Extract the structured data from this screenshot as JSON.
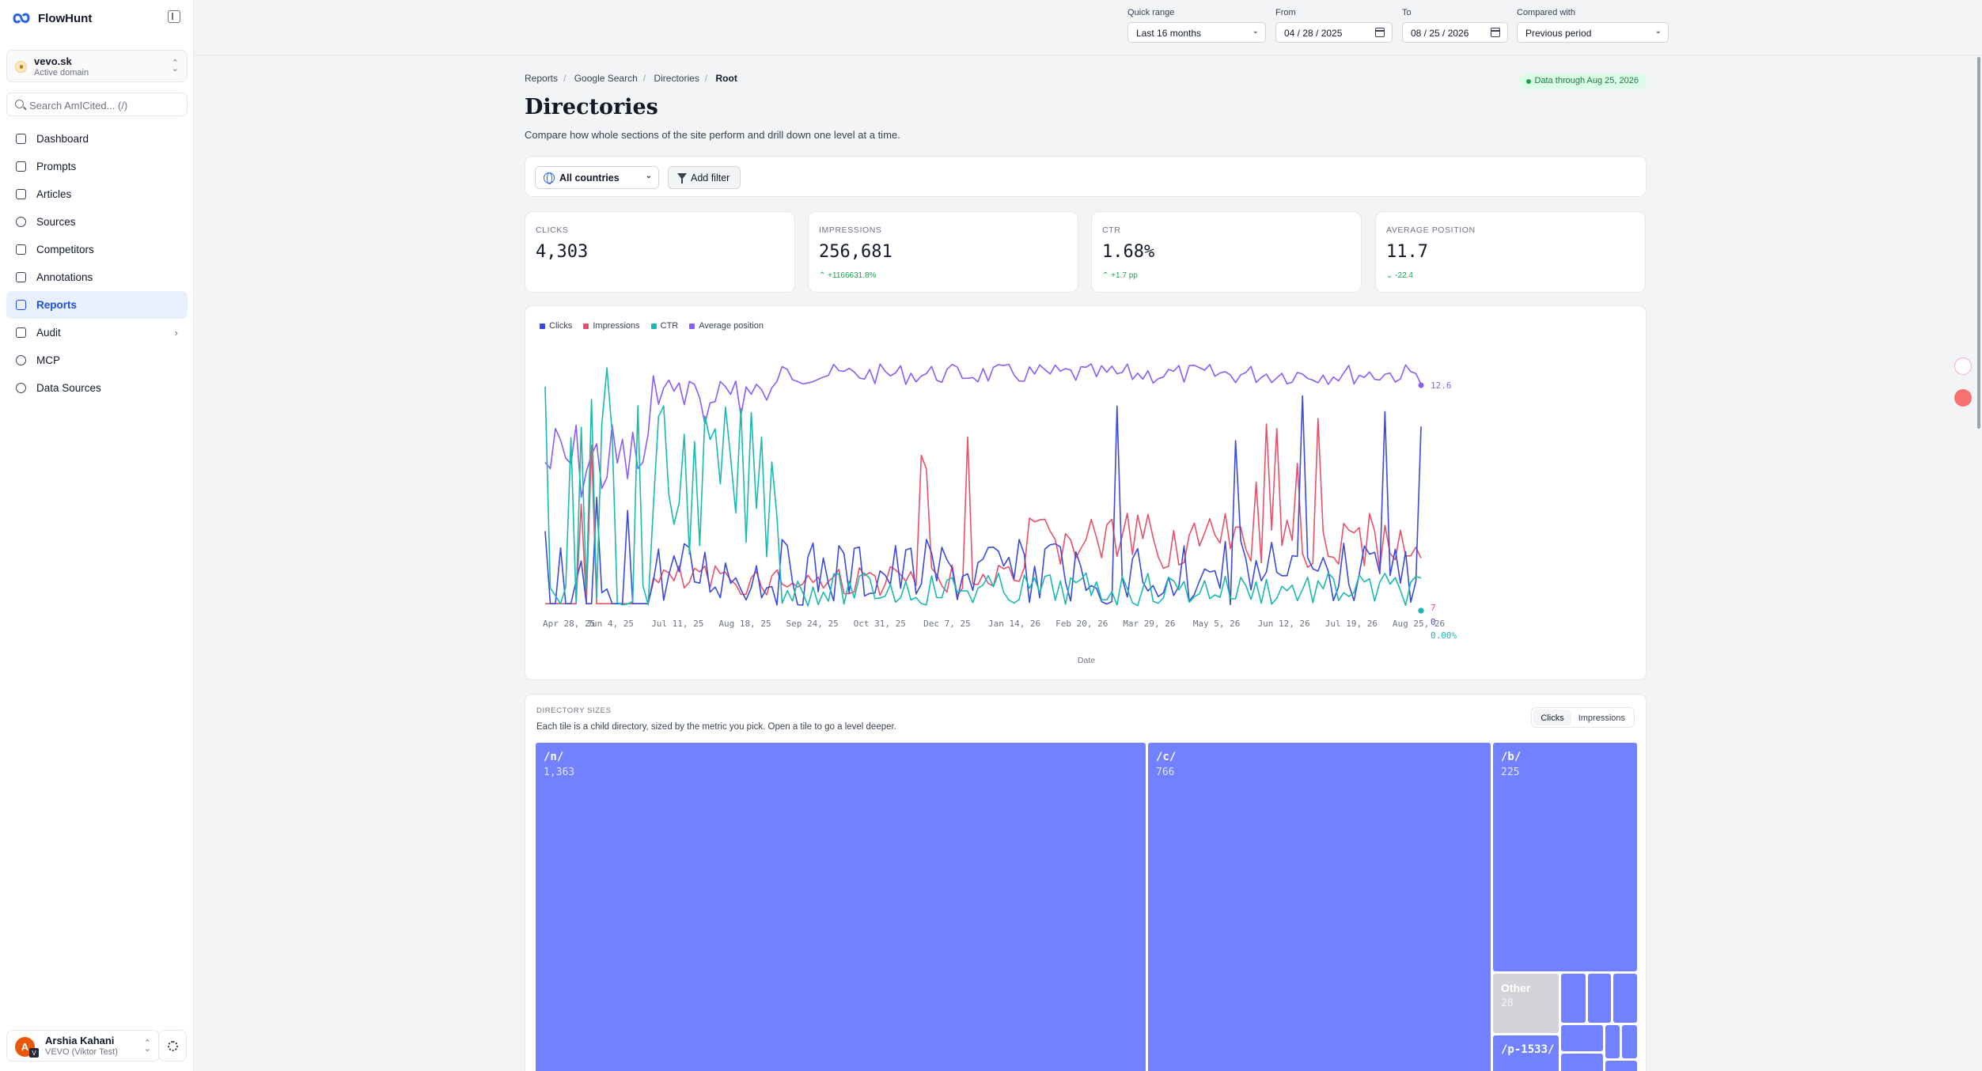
{
  "sidebar": {
    "brand": "FlowHunt",
    "domain": {
      "name": "vevo.sk",
      "sub": "Active domain"
    },
    "search_placeholder": "Search AmICited... (/)",
    "items": [
      {
        "label": "Dashboard",
        "icon": "dashboard-icon"
      },
      {
        "label": "Prompts",
        "icon": "prompts-icon"
      },
      {
        "label": "Articles",
        "icon": "articles-icon"
      },
      {
        "label": "Sources",
        "icon": "sources-icon"
      },
      {
        "label": "Competitors",
        "icon": "competitors-icon"
      },
      {
        "label": "Annotations",
        "icon": "annotations-icon"
      },
      {
        "label": "Reports",
        "icon": "reports-icon",
        "active": true
      },
      {
        "label": "Audit",
        "icon": "audit-icon",
        "has_children": true
      },
      {
        "label": "MCP",
        "icon": "mcp-icon"
      },
      {
        "label": "Data Sources",
        "icon": "data-sources-icon"
      }
    ],
    "user": {
      "name": "Arshia Kahani",
      "org": "VEVO (Viktor Test)",
      "initial": "A",
      "badge": "V"
    }
  },
  "topbar": {
    "quick_range": {
      "label": "Quick range",
      "value": "Last 16 months"
    },
    "from": {
      "label": "From",
      "value": "04 / 28 / 2025"
    },
    "to": {
      "label": "To",
      "value": "08 / 25 / 2026"
    },
    "compared": {
      "label": "Compared with",
      "value": "Previous period"
    }
  },
  "breadcrumb": [
    "Reports",
    "Google Search",
    "Directories",
    "Root"
  ],
  "data_badge": "Data through Aug 25, 2026",
  "page": {
    "title": "Directories",
    "subtitle": "Compare how whole sections of the site perform and drill down one level at a time."
  },
  "filters": {
    "country": "All countries",
    "add_filter": "Add filter"
  },
  "kpis": [
    {
      "label": "CLICKS",
      "value": "4,303",
      "delta": ""
    },
    {
      "label": "IMPRESSIONS",
      "value": "256,681",
      "delta": "+1166631.8%",
      "direction": "up"
    },
    {
      "label": "CTR",
      "value": "1.68%",
      "delta": "+1.7 pp",
      "direction": "up"
    },
    {
      "label": "AVERAGE POSITION",
      "value": "11.7",
      "delta": "-22.4",
      "direction": "down"
    }
  ],
  "colors": {
    "clicks": "#3b4ad8",
    "impressions": "#e8506a",
    "ctr": "#19b9b0",
    "position": "#8b5cf6",
    "tile": "#7281ff",
    "tile_other": "#d4d4d8"
  },
  "chart_data": {
    "type": "line",
    "xlabel": "Date",
    "x_ticks": [
      "Apr 28, 25",
      "Jun 4, 25",
      "Jul 11, 25",
      "Aug 18, 25",
      "Sep 24, 25",
      "Oct 31, 25",
      "Dec 7, 25",
      "Jan 14, 26",
      "Feb 20, 26",
      "Mar 29, 26",
      "May 5, 26",
      "Jun 12, 26",
      "Jul 19, 26",
      "Aug 25, 26"
    ],
    "series": [
      {
        "name": "Clicks",
        "color": "#3b4ad8",
        "last_label": "0",
        "last_value": 0
      },
      {
        "name": "Impressions",
        "color": "#e8506a",
        "last_label": "7",
        "last_value": 7
      },
      {
        "name": "CTR",
        "color": "#19b9b0",
        "last_label": "0.00%",
        "last_value": 0
      },
      {
        "name": "Average position",
        "color": "#8b5cf6",
        "last_label": "12.6",
        "last_value": 12.6
      }
    ],
    "grid": false,
    "legend": "top-left"
  },
  "treemap": {
    "label": "DIRECTORY SIZES",
    "subtitle": "Each tile is a child directory, sized by the metric you pick. Open a tile to go a level deeper.",
    "metric_options": [
      "Clicks",
      "Impressions"
    ],
    "selected_metric": "Clicks",
    "tiles": [
      {
        "name": "/n/",
        "value": "1,363"
      },
      {
        "name": "/c/",
        "value": "766"
      },
      {
        "name": "/b/",
        "value": "225"
      },
      {
        "name": "Other",
        "value": "28"
      },
      {
        "name": "/p-1533/",
        "value": ""
      }
    ]
  }
}
